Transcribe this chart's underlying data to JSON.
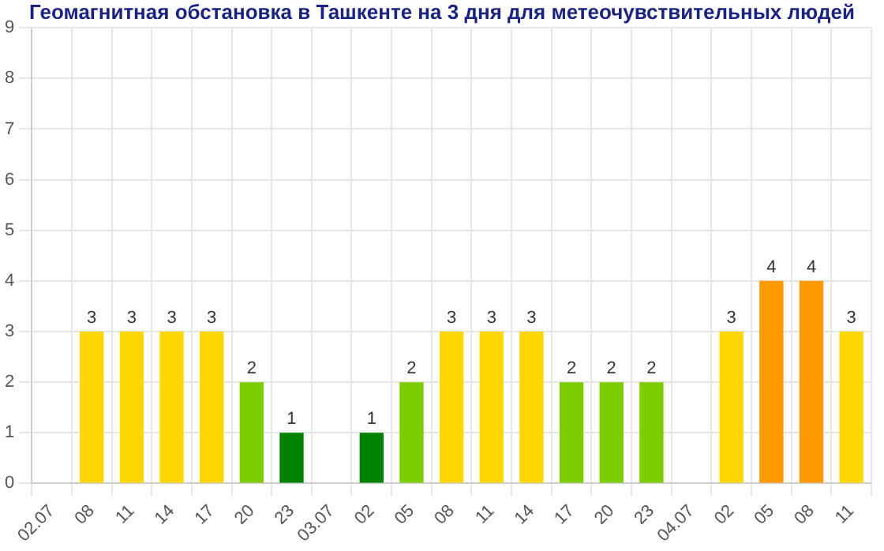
{
  "chart_data": {
    "type": "bar",
    "title": "Геомагнитная обстановка в Ташкенте на 3 дня для метеочувствительных людей",
    "categories": [
      "02.07",
      "08",
      "11",
      "14",
      "17",
      "20",
      "23",
      "03.07",
      "02",
      "05",
      "08",
      "11",
      "14",
      "17",
      "20",
      "23",
      "04.07",
      "02",
      "05",
      "08",
      "11"
    ],
    "values": [
      null,
      3,
      3,
      3,
      3,
      2,
      1,
      null,
      1,
      2,
      3,
      3,
      3,
      2,
      2,
      2,
      null,
      3,
      4,
      4,
      3
    ],
    "colors": [
      "#ffd700",
      "#ffd700",
      "#ffd700",
      "#ffd700",
      "#ffd700",
      "#7ccd00",
      "#008000",
      "#ffd700",
      "#008000",
      "#7ccd00",
      "#ffd700",
      "#ffd700",
      "#ffd700",
      "#7ccd00",
      "#7ccd00",
      "#7ccd00",
      "#ffd700",
      "#ffd700",
      "#ff9900",
      "#ff9900",
      "#ffd700"
    ],
    "ylim": [
      0,
      9
    ],
    "yticks": [
      0,
      1,
      2,
      3,
      4,
      5,
      6,
      7,
      8,
      9
    ],
    "grid": true,
    "data_labels": true,
    "legend": false
  }
}
